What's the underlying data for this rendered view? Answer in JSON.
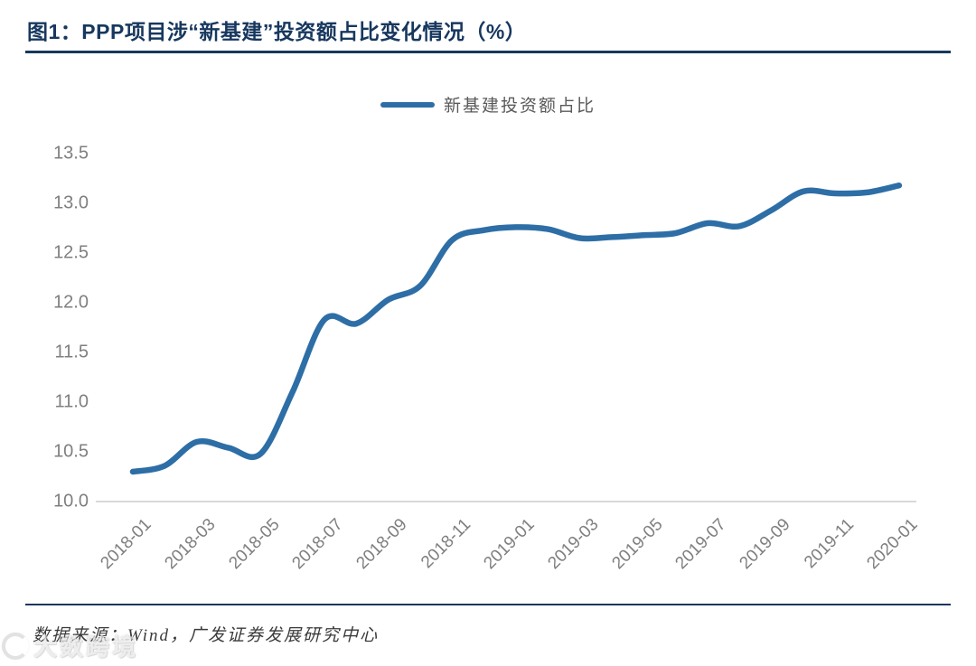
{
  "header": {
    "title": "图1：PPP项目涉“新基建”投资额占比变化情况（%）"
  },
  "chart_data": {
    "type": "line",
    "title": "PPP项目涉“新基建”投资额占比变化情况（%）",
    "xlabel": "",
    "ylabel": "",
    "legend_position": "top-center",
    "grid": "bottom-axis-only",
    "ylim": [
      10.0,
      13.5
    ],
    "ytick_labels": [
      "13.5",
      "13.0",
      "12.5",
      "12.0",
      "11.5",
      "11.0",
      "10.5",
      "10.0"
    ],
    "xtick_labels": [
      "2018-01",
      "2018-03",
      "2018-05",
      "2018-07",
      "2018-09",
      "2018-11",
      "2019-01",
      "2019-03",
      "2019-05",
      "2019-07",
      "2019-09",
      "2019-11",
      "2020-01"
    ],
    "x": [
      "2018-01",
      "2018-02",
      "2018-03",
      "2018-04",
      "2018-05",
      "2018-06",
      "2018-07",
      "2018-08",
      "2018-09",
      "2018-10",
      "2018-11",
      "2018-12",
      "2019-01",
      "2019-02",
      "2019-03",
      "2019-04",
      "2019-05",
      "2019-06",
      "2019-07",
      "2019-08",
      "2019-09",
      "2019-10",
      "2019-11",
      "2019-12",
      "2020-01"
    ],
    "series": [
      {
        "name": "新基建投资额占比",
        "color": "#2e6ea6",
        "values": [
          10.3,
          10.36,
          10.6,
          10.54,
          10.48,
          11.1,
          11.83,
          11.79,
          12.03,
          12.17,
          12.63,
          12.73,
          12.76,
          12.74,
          12.65,
          12.66,
          12.68,
          12.7,
          12.8,
          12.77,
          12.93,
          13.12,
          13.1,
          13.11,
          13.18
        ]
      }
    ]
  },
  "footer": {
    "source": "数据来源：Wind，广发证券发展研究中心",
    "watermark": "大数跨境"
  },
  "colors": {
    "title_navy": "#17375e",
    "line_blue": "#2e6ea6",
    "tick_gray": "#7f7f7f",
    "baseline_gray": "#d9d9d9"
  }
}
